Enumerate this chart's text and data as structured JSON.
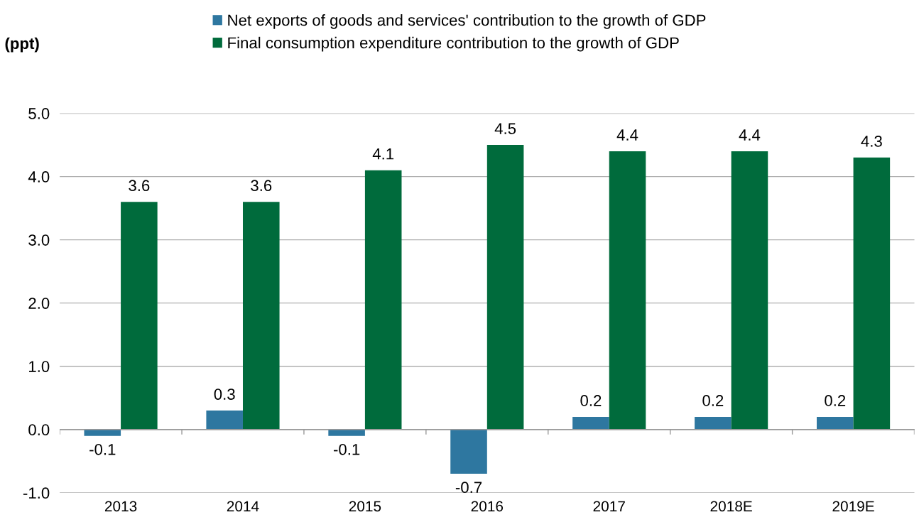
{
  "chart_data": {
    "type": "bar",
    "ylabel": "(ppt)",
    "categories": [
      "2013",
      "2014",
      "2015",
      "2016",
      "2017",
      "2018E",
      "2019E"
    ],
    "series": [
      {
        "name": "Net exports of goods and services' contribution to the growth of GDP",
        "color": "#2e77a0",
        "values": [
          -0.1,
          0.3,
          -0.1,
          -0.7,
          0.2,
          0.2,
          0.2
        ]
      },
      {
        "name": "Final consumption expenditure contribution to the growth of GDP",
        "color": "#006b3c",
        "values": [
          3.6,
          3.6,
          4.1,
          4.5,
          4.4,
          4.4,
          4.3
        ]
      }
    ],
    "ylim": [
      -1,
      5
    ],
    "yticks": [
      {
        "value": -1,
        "label": "-1.0"
      },
      {
        "value": 0,
        "label": "0.0"
      },
      {
        "value": 1,
        "label": "1.0"
      },
      {
        "value": 2,
        "label": "2.0"
      },
      {
        "value": 3,
        "label": "3.0"
      },
      {
        "value": 4,
        "label": "4.0"
      },
      {
        "value": 5,
        "label": "5.0"
      }
    ],
    "grid": "y",
    "legend": "top",
    "data_labels": true
  }
}
